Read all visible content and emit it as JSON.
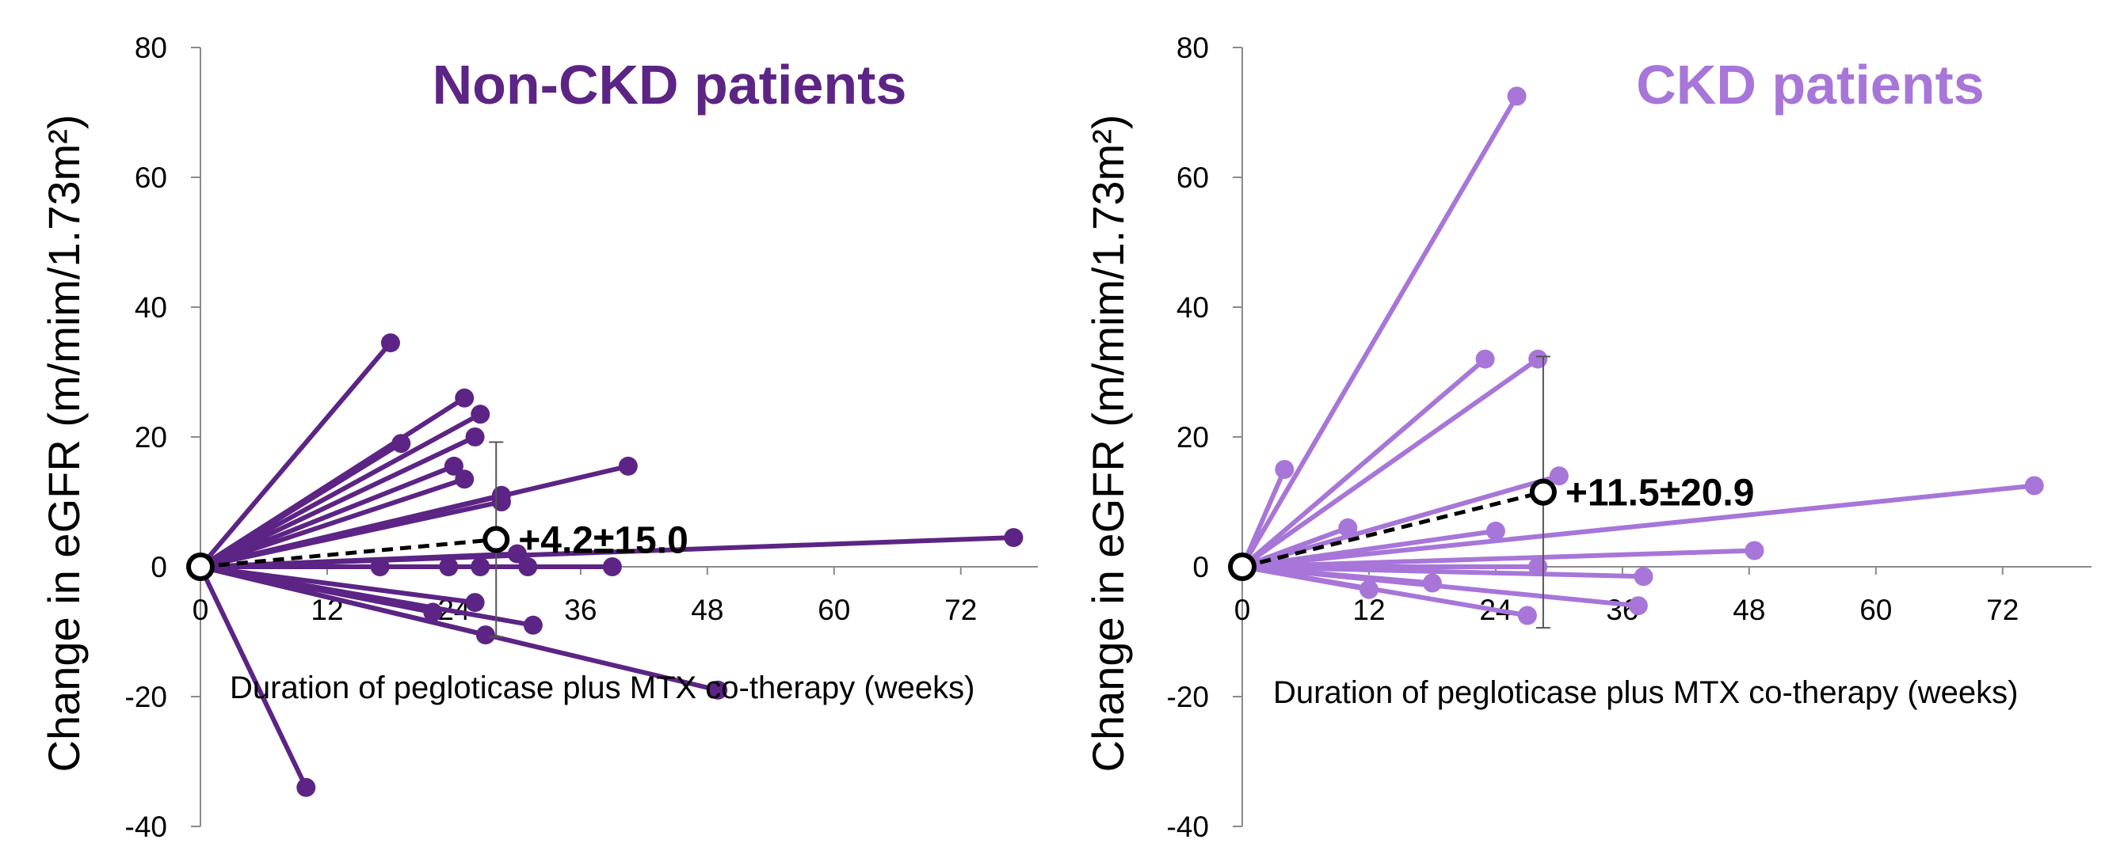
{
  "chart_data": [
    {
      "type": "line",
      "title": "Non-CKD patients",
      "xlabel": "Duration of pegloticase plus MTX co-therapy (weeks)",
      "ylabel": "Change in eGFR (m/mim/1.73m²)",
      "xlim": [
        0,
        80
      ],
      "ylim": [
        -40,
        80
      ],
      "xticks": [
        "0",
        "12",
        "24",
        "36",
        "48",
        "60",
        "72"
      ],
      "yticks": [
        "80",
        "60",
        "40",
        "20",
        "0",
        "-20",
        "-40"
      ],
      "color": "#5c2484",
      "grid": false,
      "series": [
        {
          "x": [
            0,
            18
          ],
          "y": [
            0,
            34.5
          ]
        },
        {
          "x": [
            0,
            19
          ],
          "y": [
            0,
            19
          ]
        },
        {
          "x": [
            0,
            25
          ],
          "y": [
            0,
            26
          ]
        },
        {
          "x": [
            0,
            26.5
          ],
          "y": [
            0,
            23.5
          ]
        },
        {
          "x": [
            0,
            26
          ],
          "y": [
            0,
            20
          ]
        },
        {
          "x": [
            0,
            24
          ],
          "y": [
            0,
            15.5
          ]
        },
        {
          "x": [
            0,
            25
          ],
          "y": [
            0,
            13.5
          ]
        },
        {
          "x": [
            0,
            28.5
          ],
          "y": [
            0,
            11
          ]
        },
        {
          "x": [
            0,
            28.5
          ],
          "y": [
            0,
            10
          ]
        },
        {
          "x": [
            0,
            40.5
          ],
          "y": [
            0,
            15.5
          ]
        },
        {
          "x": [
            0,
            77
          ],
          "y": [
            0,
            4.5
          ]
        },
        {
          "x": [
            0,
            30
          ],
          "y": [
            0,
            2
          ]
        },
        {
          "x": [
            0,
            17
          ],
          "y": [
            0,
            0
          ]
        },
        {
          "x": [
            0,
            23.5
          ],
          "y": [
            0,
            0
          ]
        },
        {
          "x": [
            0,
            26.5
          ],
          "y": [
            0,
            0
          ]
        },
        {
          "x": [
            0,
            31
          ],
          "y": [
            0,
            0
          ]
        },
        {
          "x": [
            0,
            39
          ],
          "y": [
            0,
            0
          ]
        },
        {
          "x": [
            0,
            26
          ],
          "y": [
            0,
            -5.5
          ]
        },
        {
          "x": [
            0,
            22
          ],
          "y": [
            0,
            -7
          ]
        },
        {
          "x": [
            0,
            31.5
          ],
          "y": [
            0,
            -9
          ]
        },
        {
          "x": [
            0,
            27
          ],
          "y": [
            0,
            -10.5
          ]
        },
        {
          "x": [
            0,
            49
          ],
          "y": [
            0,
            -19
          ]
        },
        {
          "x": [
            0,
            10
          ],
          "y": [
            0,
            -34
          ]
        }
      ],
      "mean": {
        "x": 28,
        "y": 4.2,
        "error": 15.0,
        "label": "+4.2±15.0"
      }
    },
    {
      "type": "line",
      "title": "CKD patients",
      "xlabel": "Duration of pegloticase plus MTX co-therapy (weeks)",
      "ylabel": "Change in eGFR (m/mim/1.73m²)",
      "xlim": [
        0,
        80
      ],
      "ylim": [
        -40,
        80
      ],
      "xticks": [
        "0",
        "12",
        "24",
        "36",
        "48",
        "60",
        "72"
      ],
      "yticks": [
        "80",
        "60",
        "40",
        "20",
        "0",
        "-20",
        "-40"
      ],
      "color": "#a776d8",
      "grid": false,
      "series": [
        {
          "x": [
            0,
            26
          ],
          "y": [
            0,
            72.5
          ]
        },
        {
          "x": [
            0,
            23
          ],
          "y": [
            0,
            32
          ]
        },
        {
          "x": [
            0,
            28
          ],
          "y": [
            0,
            32
          ]
        },
        {
          "x": [
            0,
            4
          ],
          "y": [
            0,
            15
          ]
        },
        {
          "x": [
            0,
            30
          ],
          "y": [
            0,
            14
          ]
        },
        {
          "x": [
            0,
            75
          ],
          "y": [
            0,
            12.5
          ]
        },
        {
          "x": [
            0,
            10
          ],
          "y": [
            0,
            6
          ]
        },
        {
          "x": [
            0,
            24
          ],
          "y": [
            0,
            5.5
          ]
        },
        {
          "x": [
            0,
            48.5
          ],
          "y": [
            0,
            2.5
          ]
        },
        {
          "x": [
            0,
            28
          ],
          "y": [
            0,
            0
          ]
        },
        {
          "x": [
            0,
            38
          ],
          "y": [
            0,
            -1.5
          ]
        },
        {
          "x": [
            0,
            18
          ],
          "y": [
            0,
            -2.5
          ]
        },
        {
          "x": [
            0,
            12
          ],
          "y": [
            0,
            -3.5
          ]
        },
        {
          "x": [
            0,
            37.5
          ],
          "y": [
            0,
            -6
          ]
        },
        {
          "x": [
            0,
            27
          ],
          "y": [
            0,
            -7.5
          ]
        }
      ],
      "mean": {
        "x": 28.5,
        "y": 11.5,
        "error": 20.9,
        "label": "+11.5±20.9"
      }
    }
  ]
}
